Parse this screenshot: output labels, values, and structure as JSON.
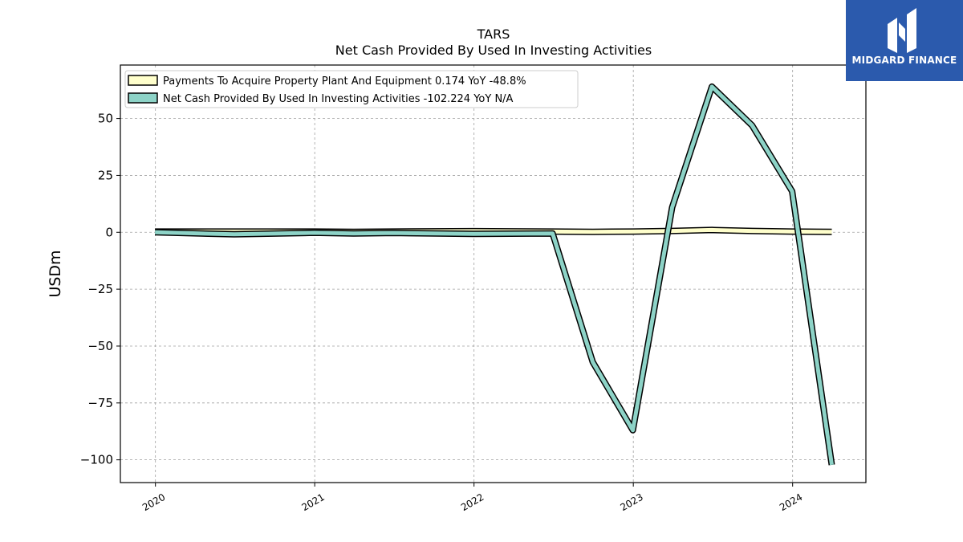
{
  "chart_data": {
    "type": "line",
    "title": "TARS",
    "subtitle": "Net Cash Provided By Used In Investing Activities",
    "ylabel": "USDm",
    "xlabel": "",
    "xlim": [
      2019.78,
      2024.46
    ],
    "ylim": [
      -110,
      73.5
    ],
    "x_ticks": [
      {
        "value": 2020,
        "label": "2020"
      },
      {
        "value": 2021,
        "label": "2021"
      },
      {
        "value": 2022,
        "label": "2022"
      },
      {
        "value": 2023,
        "label": "2023"
      },
      {
        "value": 2024,
        "label": "2024"
      }
    ],
    "y_ticks": [
      {
        "value": 50,
        "label": "50"
      },
      {
        "value": 25,
        "label": "25"
      },
      {
        "value": 0,
        "label": "0"
      },
      {
        "value": -25,
        "label": "−25"
      },
      {
        "value": -50,
        "label": "−50"
      },
      {
        "value": -75,
        "label": "−75"
      },
      {
        "value": -100,
        "label": "−100"
      }
    ],
    "grid": true,
    "legend_position": "top-left",
    "series": [
      {
        "name": "Payments To Acquire Property Plant And Equipment  0.174 YoY -48.8%",
        "color": "#ffffcc",
        "x": [
          "2019-12-31",
          "2020-06-30",
          "2020-12-31",
          "2021-03-31",
          "2021-06-30",
          "2021-12-31",
          "2022-06-30",
          "2022-09-30",
          "2022-12-31",
          "2023-03-31",
          "2023-06-30",
          "2023-09-30",
          "2023-12-31",
          "2024-03-31"
        ],
        "values": [
          0.3,
          0.3,
          0.3,
          0.2,
          0.3,
          0.5,
          0.3,
          0.2,
          0.3,
          0.6,
          1.0,
          0.6,
          0.3,
          0.17
        ]
      },
      {
        "name": "Net Cash Provided By Used In Investing Activities  -102.224 YoY N/A",
        "color": "#8dd3c7",
        "x": [
          "2019-12-31",
          "2020-06-30",
          "2020-12-31",
          "2021-03-31",
          "2021-06-30",
          "2021-12-31",
          "2022-06-30",
          "2022-09-30",
          "2022-12-31",
          "2023-03-31",
          "2023-06-30",
          "2023-09-30",
          "2023-12-31",
          "2024-03-31"
        ],
        "values": [
          0,
          -0.9,
          -0.2,
          -0.5,
          -0.3,
          -0.7,
          -0.5,
          -57,
          -87,
          11,
          64,
          47,
          18,
          -102.2
        ]
      }
    ]
  },
  "logo": {
    "text": "MIDGARD FINANCE",
    "color": "#2b5aad"
  }
}
